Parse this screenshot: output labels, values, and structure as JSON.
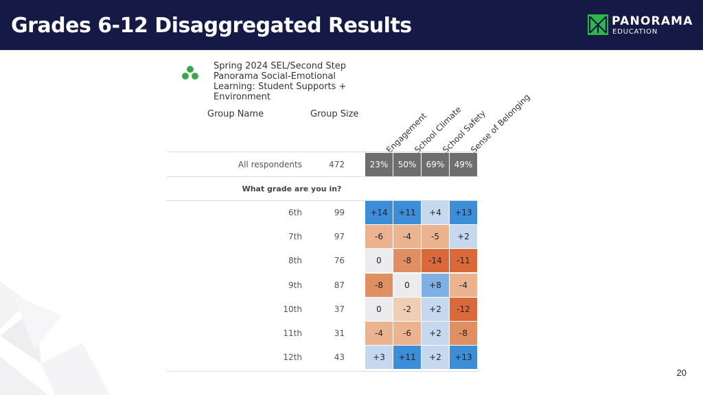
{
  "slide": {
    "title": "Grades 6-12 Disaggregated Results",
    "page_number": "20"
  },
  "brand": {
    "name": "PANORAMA",
    "sub": "EDUCATION",
    "accent": "#2fb84a",
    "header_bg": "#141a45"
  },
  "report": {
    "title_lines": [
      "Spring 2024 SEL/Second Step",
      "Panorama Social-Emotional",
      "Learning: Student Supports +",
      "Environment"
    ],
    "col_group_name": "Group Name",
    "col_group_size": "Group Size",
    "metrics": [
      "Engagement",
      "School Climate",
      "School Safety",
      "Sense of Belonging"
    ],
    "overall": {
      "label": "All respondents",
      "size": "472",
      "values": [
        "23%",
        "50%",
        "69%",
        "49%"
      ]
    },
    "section_label": "What grade are you in?",
    "rows": [
      {
        "label": "6th",
        "size": "99",
        "values": [
          "+14",
          "+11",
          "+4",
          "+13"
        ]
      },
      {
        "label": "7th",
        "size": "97",
        "values": [
          "-6",
          "-4",
          "-5",
          "+2"
        ]
      },
      {
        "label": "8th",
        "size": "76",
        "values": [
          "0",
          "-8",
          "-14",
          "-11"
        ]
      },
      {
        "label": "9th",
        "size": "87",
        "values": [
          "-8",
          "0",
          "+8",
          "-4"
        ]
      },
      {
        "label": "10th",
        "size": "37",
        "values": [
          "0",
          "-2",
          "+2",
          "-12"
        ]
      },
      {
        "label": "11th",
        "size": "31",
        "values": [
          "-4",
          "-6",
          "+2",
          "-8"
        ]
      },
      {
        "label": "12th",
        "size": "43",
        "values": [
          "+3",
          "+11",
          "+2",
          "+13"
        ]
      }
    ]
  }
}
